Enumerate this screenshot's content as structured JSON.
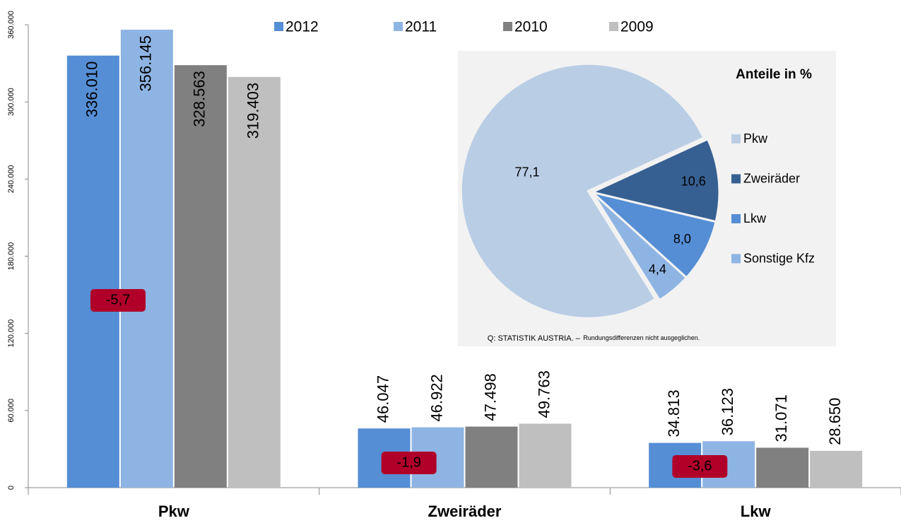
{
  "chart_data": [
    {
      "type": "bar",
      "categories": [
        "Pkw",
        "Zweiräder",
        "Lkw"
      ],
      "series": [
        {
          "name": "2012",
          "color": "#558ed5",
          "values": [
            336010,
            46047,
            34813
          ],
          "value_labels": [
            "336.010",
            "46.047",
            "34.813"
          ]
        },
        {
          "name": "2011",
          "color": "#8eb4e3",
          "values": [
            356145,
            46922,
            36123
          ],
          "value_labels": [
            "356.145",
            "46.922",
            "36.123"
          ]
        },
        {
          "name": "2010",
          "color": "#808080",
          "values": [
            328563,
            47498,
            31071
          ],
          "value_labels": [
            "328.563",
            "47.498",
            "31.071"
          ]
        },
        {
          "name": "2009",
          "color": "#bfbfbf",
          "values": [
            319403,
            49763,
            28650
          ],
          "value_labels": [
            "319.403",
            "49.763",
            "28.650"
          ]
        }
      ],
      "ylim": [
        0,
        360000
      ],
      "yticks": [
        0,
        {
          "value": 60000,
          "label": "60.000"
        },
        {
          "value": 120000,
          "label": "120.000"
        },
        {
          "value": 180000,
          "label": "180.000"
        },
        {
          "value": 240000,
          "label": "240.000"
        },
        {
          "value": 300000,
          "label": "300.000"
        },
        {
          "value": 360000,
          "label": "360.000"
        }
      ],
      "annotations": [
        "-5,7",
        "-1,9",
        "-3,6"
      ],
      "annotation_color": "#b0002a",
      "legend": "top"
    },
    {
      "type": "pie",
      "title": "Anteile in %",
      "categories": [
        "Pkw",
        "Zweiräder",
        "Lkw",
        "Sonstige Kfz"
      ],
      "values": [
        77.1,
        10.6,
        8.0,
        4.4
      ],
      "value_labels": [
        "77,1",
        "10,6",
        "8,0",
        "4,4"
      ],
      "colors": [
        "#b9cde5",
        "#376092",
        "#558ed5",
        "#8eb4e3"
      ],
      "source": [
        "Q: STATISTIK AUSTRIA. –",
        "Rundungsdifferenzen nicht ausgeglichen."
      ],
      "legend": "right"
    }
  ]
}
